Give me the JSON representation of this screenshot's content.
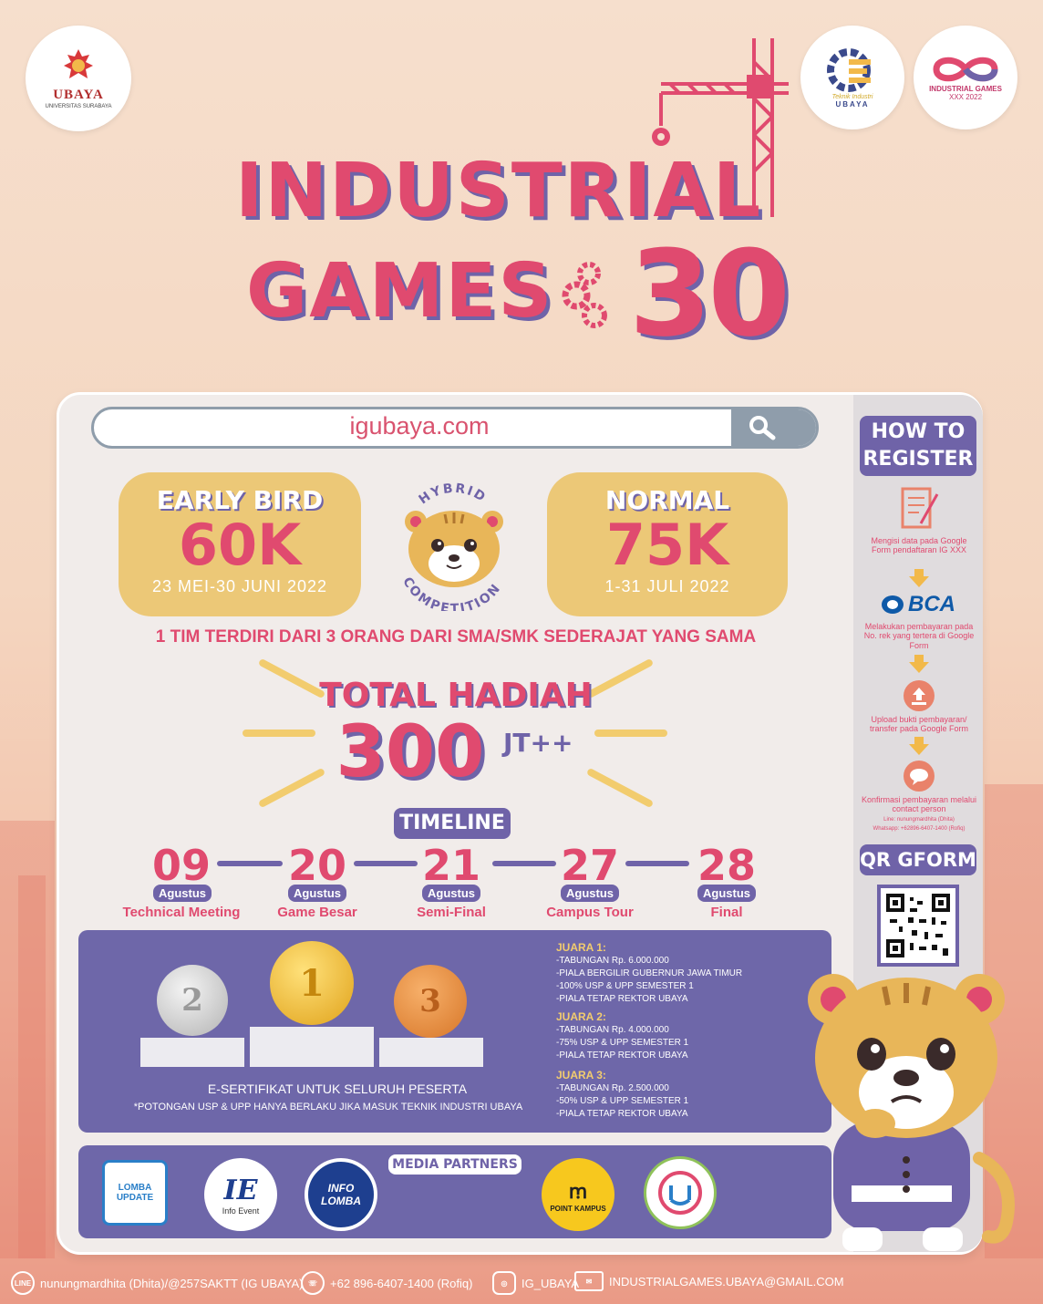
{
  "logos": {
    "ubaya_name": "UBAYA",
    "ubaya_sub": "UNIVERSITAS SURABAYA",
    "ti_line1": "Teknik Industri",
    "ti_line2": "UBAYA",
    "ig_line1": "INDUSTRIAL GAMES",
    "ig_line2": "XXX 2022"
  },
  "title": {
    "line1": "INDUSTRIAL",
    "line2": "GAMES",
    "number": "30"
  },
  "search": {
    "url": "igubaya.com"
  },
  "pricing": {
    "early_label": "EARLY BIRD",
    "early_price": "60K",
    "early_date": "23 MEI-30 JUNI 2022",
    "badge_top": "HYBRID",
    "badge_bottom": "COMPETITION",
    "normal_label": "NORMAL",
    "normal_price": "75K",
    "normal_date": "1-31 JULI 2022",
    "team_note": "1 TIM TERDIRI DARI 3 ORANG DARI SMA/SMK SEDERAJAT YANG SAMA"
  },
  "prize_total": {
    "title": "TOTAL HADIAH",
    "amount": "300",
    "unit": "JT++"
  },
  "timeline": {
    "title": "TIMELINE",
    "events": [
      {
        "day": "09",
        "month": "Agustus",
        "name": "Technical Meeting"
      },
      {
        "day": "20",
        "month": "Agustus",
        "name": "Game Besar"
      },
      {
        "day": "21",
        "month": "Agustus",
        "name": "Semi-Final"
      },
      {
        "day": "27",
        "month": "Agustus",
        "name": "Campus Tour"
      },
      {
        "day": "28",
        "month": "Agustus",
        "name": "Final"
      }
    ]
  },
  "prizes": {
    "cert": "E-SERTIFIKAT UNTUK SELURUH PESERTA",
    "note": "*POTONGAN USP & UPP HANYA BERLAKU JIKA MASUK TEKNIK INDUSTRI UBAYA",
    "medals": [
      "2",
      "1",
      "3"
    ],
    "juara": [
      {
        "title": "JUARA 1:",
        "items": [
          "-TABUNGAN Rp. 6.000.000",
          "-PIALA BERGILIR GUBERNUR JAWA TIMUR",
          "-100% USP & UPP SEMESTER 1",
          "-PIALA TETAP REKTOR UBAYA"
        ]
      },
      {
        "title": "JUARA 2:",
        "items": [
          "-TABUNGAN Rp. 4.000.000",
          "-75% USP & UPP SEMESTER 1",
          "-PIALA TETAP REKTOR UBAYA"
        ]
      },
      {
        "title": "JUARA 3:",
        "items": [
          "-TABUNGAN Rp. 2.500.000",
          "-50% USP & UPP SEMESTER 1",
          "-PIALA TETAP REKTOR UBAYA"
        ]
      }
    ]
  },
  "partners": {
    "title": "MEDIA PARTNERS",
    "logos": [
      "LOMBA UPDATE",
      "IE",
      "Info Event",
      "INFO LOMBA",
      "POINT KAMPUS"
    ]
  },
  "register": {
    "title_line1": "HOW TO",
    "title_line2": "REGISTER",
    "step1": "Mengisi data pada Google Form pendaftaran IG XXX",
    "bank": "BCA",
    "step2": "Melakukan pembayaran pada No. rek yang tertera di Google Form",
    "step3": "Upload bukti pembayaran/ transfer pada Google Form",
    "step4": "Konfirmasi pembayaran melalui contact person",
    "contact_line": "Line: nunungmardhita (Dhita)",
    "contact_wa": "Whatsapp: +62896-6407-1400 (Rofiq)",
    "qr_title": "QR GFORM"
  },
  "footer": {
    "line_icon": "LINE",
    "line": "nunungmardhita (Dhita)/@257SAKTT (IG UBAYA)",
    "whatsapp": "+62 896-6407-1400 (Rofiq)",
    "instagram": "IG_UBAYA",
    "email": "INDUSTRIALGAMES.UBAYA@GMAIL.COM"
  },
  "colors": {
    "pink": "#e04a6f",
    "purple": "#6f63a8",
    "gold": "#ecc877"
  }
}
